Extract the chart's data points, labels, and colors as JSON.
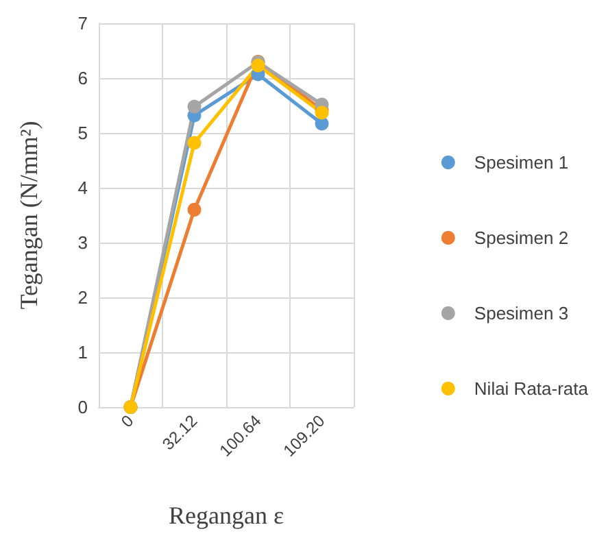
{
  "chart_data": {
    "type": "line",
    "xlabel": "Regangan ε",
    "ylabel": "Tegangan (N/mm²)",
    "categories": [
      "0",
      "32.12",
      "100.64",
      "109.20"
    ],
    "series": [
      {
        "name": "Spesimen 1",
        "color": "#5b9bd5",
        "values": [
          0,
          5.32,
          6.07,
          5.17
        ]
      },
      {
        "name": "Spesimen 2",
        "color": "#ed7d31",
        "values": [
          0,
          3.6,
          6.3,
          5.42
        ]
      },
      {
        "name": "Spesimen 3",
        "color": "#a5a5a5",
        "values": [
          0,
          5.48,
          6.29,
          5.52
        ]
      },
      {
        "name": "Nilai Rata-rata",
        "color": "#ffc000",
        "values": [
          0,
          4.82,
          6.23,
          5.37
        ]
      }
    ],
    "ylim": [
      0,
      7
    ],
    "yticks": [
      0,
      1,
      2,
      3,
      4,
      5,
      6,
      7
    ],
    "grid": true,
    "legend": "right",
    "marker": "circle",
    "line_style": "solid"
  }
}
